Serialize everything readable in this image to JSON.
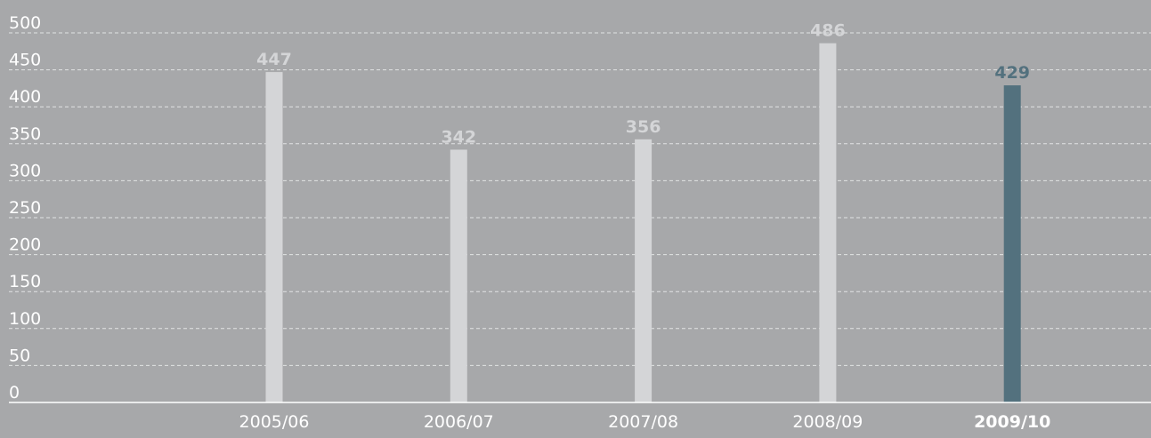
{
  "chart_data": {
    "type": "bar",
    "categories": [
      "2005/06",
      "2006/07",
      "2007/08",
      "2008/09",
      "2009/10"
    ],
    "values": [
      447,
      342,
      356,
      486,
      429
    ],
    "highlight_index": 4,
    "title": "",
    "xlabel": "",
    "ylabel": "",
    "ylim": [
      0,
      500
    ],
    "yticks": [
      0,
      50,
      100,
      150,
      200,
      250,
      300,
      350,
      400,
      450,
      500
    ],
    "grid": true,
    "legend": "none",
    "colors": {
      "background": "#a7a8aa",
      "bar": "#d4d5d7",
      "bar_highlight": "#53717e",
      "label": "#d4d5d7",
      "label_highlight": "#53717e",
      "axis_text": "#ffffff"
    }
  }
}
